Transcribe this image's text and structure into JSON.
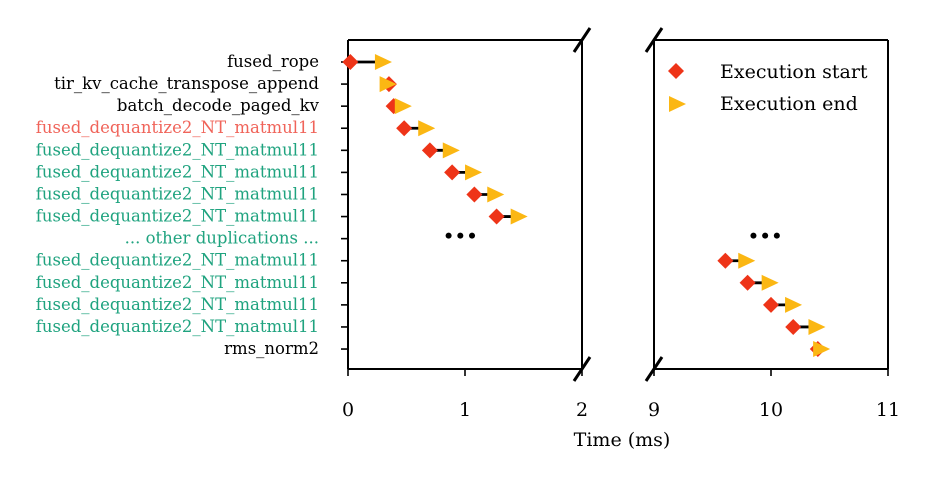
{
  "chart_data": {
    "type": "scatter",
    "xlabel": "Time (ms)",
    "categories": [
      "fused_rope",
      "tir_kv_cache_transpose_append",
      "batch_decode_paged_kv",
      "fused_dequantize2_NT_matmul11",
      "fused_dequantize2_NT_matmul11",
      "fused_dequantize2_NT_matmul11",
      "fused_dequantize2_NT_matmul11",
      "fused_dequantize2_NT_matmul11",
      "... other duplications ...",
      "fused_dequantize2_NT_matmul11",
      "fused_dequantize2_NT_matmul11",
      "fused_dequantize2_NT_matmul11",
      "fused_dequantize2_NT_matmul11",
      "rms_norm2"
    ],
    "label_colors": [
      "#000000",
      "#000000",
      "#000000",
      "#f0645a",
      "#1fa37f",
      "#1fa37f",
      "#1fa37f",
      "#1fa37f",
      "#1fa37f",
      "#1fa37f",
      "#1fa37f",
      "#1fa37f",
      "#1fa37f",
      "#000000"
    ],
    "panels": [
      {
        "xlim": [
          0,
          2
        ],
        "xticks": [
          "0",
          "1",
          "2"
        ]
      },
      {
        "xlim": [
          9,
          11
        ],
        "xticks": [
          "9",
          "10",
          "11"
        ]
      }
    ],
    "series": [
      {
        "name": "Execution start",
        "color": "#ee3418",
        "marker": "diamond",
        "points": [
          {
            "row": 0,
            "x": 0.02
          },
          {
            "row": 1,
            "x": 0.35
          },
          {
            "row": 2,
            "x": 0.39
          },
          {
            "row": 3,
            "x": 0.48
          },
          {
            "row": 4,
            "x": 0.7
          },
          {
            "row": 5,
            "x": 0.89
          },
          {
            "row": 6,
            "x": 1.08
          },
          {
            "row": 7,
            "x": 1.27
          },
          {
            "row": 9,
            "x": 9.61
          },
          {
            "row": 10,
            "x": 9.8
          },
          {
            "row": 11,
            "x": 10.0
          },
          {
            "row": 12,
            "x": 10.19
          },
          {
            "row": 13,
            "x": 10.4
          }
        ]
      },
      {
        "name": "Execution end",
        "color": "#fbb713",
        "marker": "triangle-right",
        "points": [
          {
            "row": 0,
            "x": 0.29
          },
          {
            "row": 1,
            "x": 0.33
          },
          {
            "row": 2,
            "x": 0.46
          },
          {
            "row": 3,
            "x": 0.66
          },
          {
            "row": 4,
            "x": 0.87
          },
          {
            "row": 5,
            "x": 1.06
          },
          {
            "row": 6,
            "x": 1.25
          },
          {
            "row": 7,
            "x": 1.45
          },
          {
            "row": 9,
            "x": 9.78
          },
          {
            "row": 10,
            "x": 9.98
          },
          {
            "row": 11,
            "x": 10.18
          },
          {
            "row": 12,
            "x": 10.38
          },
          {
            "row": 13,
            "x": 10.42
          }
        ]
      }
    ],
    "durations": [
      {
        "row": 0,
        "from": 0.02,
        "to": 0.29
      },
      {
        "row": 2,
        "from": 0.39,
        "to": 0.43
      },
      {
        "row": 3,
        "from": 0.48,
        "to": 0.64
      },
      {
        "row": 4,
        "from": 0.7,
        "to": 0.85
      },
      {
        "row": 5,
        "from": 0.89,
        "to": 1.03
      },
      {
        "row": 6,
        "from": 1.08,
        "to": 1.22
      },
      {
        "row": 7,
        "from": 1.27,
        "to": 1.43
      },
      {
        "row": 9,
        "from": 9.61,
        "to": 9.76
      },
      {
        "row": 10,
        "from": 9.8,
        "to": 9.95
      },
      {
        "row": 11,
        "from": 10.0,
        "to": 10.15
      },
      {
        "row": 12,
        "from": 10.19,
        "to": 10.35
      }
    ],
    "ellipsis": [
      {
        "panel": 0,
        "row": 8,
        "x": [
          0.86,
          0.96,
          1.06
        ]
      },
      {
        "panel": 1,
        "row": 8,
        "x": [
          9.85,
          9.95,
          10.05
        ]
      }
    ],
    "legend": {
      "location": "top-right",
      "entries": [
        "Execution start",
        "Execution end"
      ]
    }
  }
}
